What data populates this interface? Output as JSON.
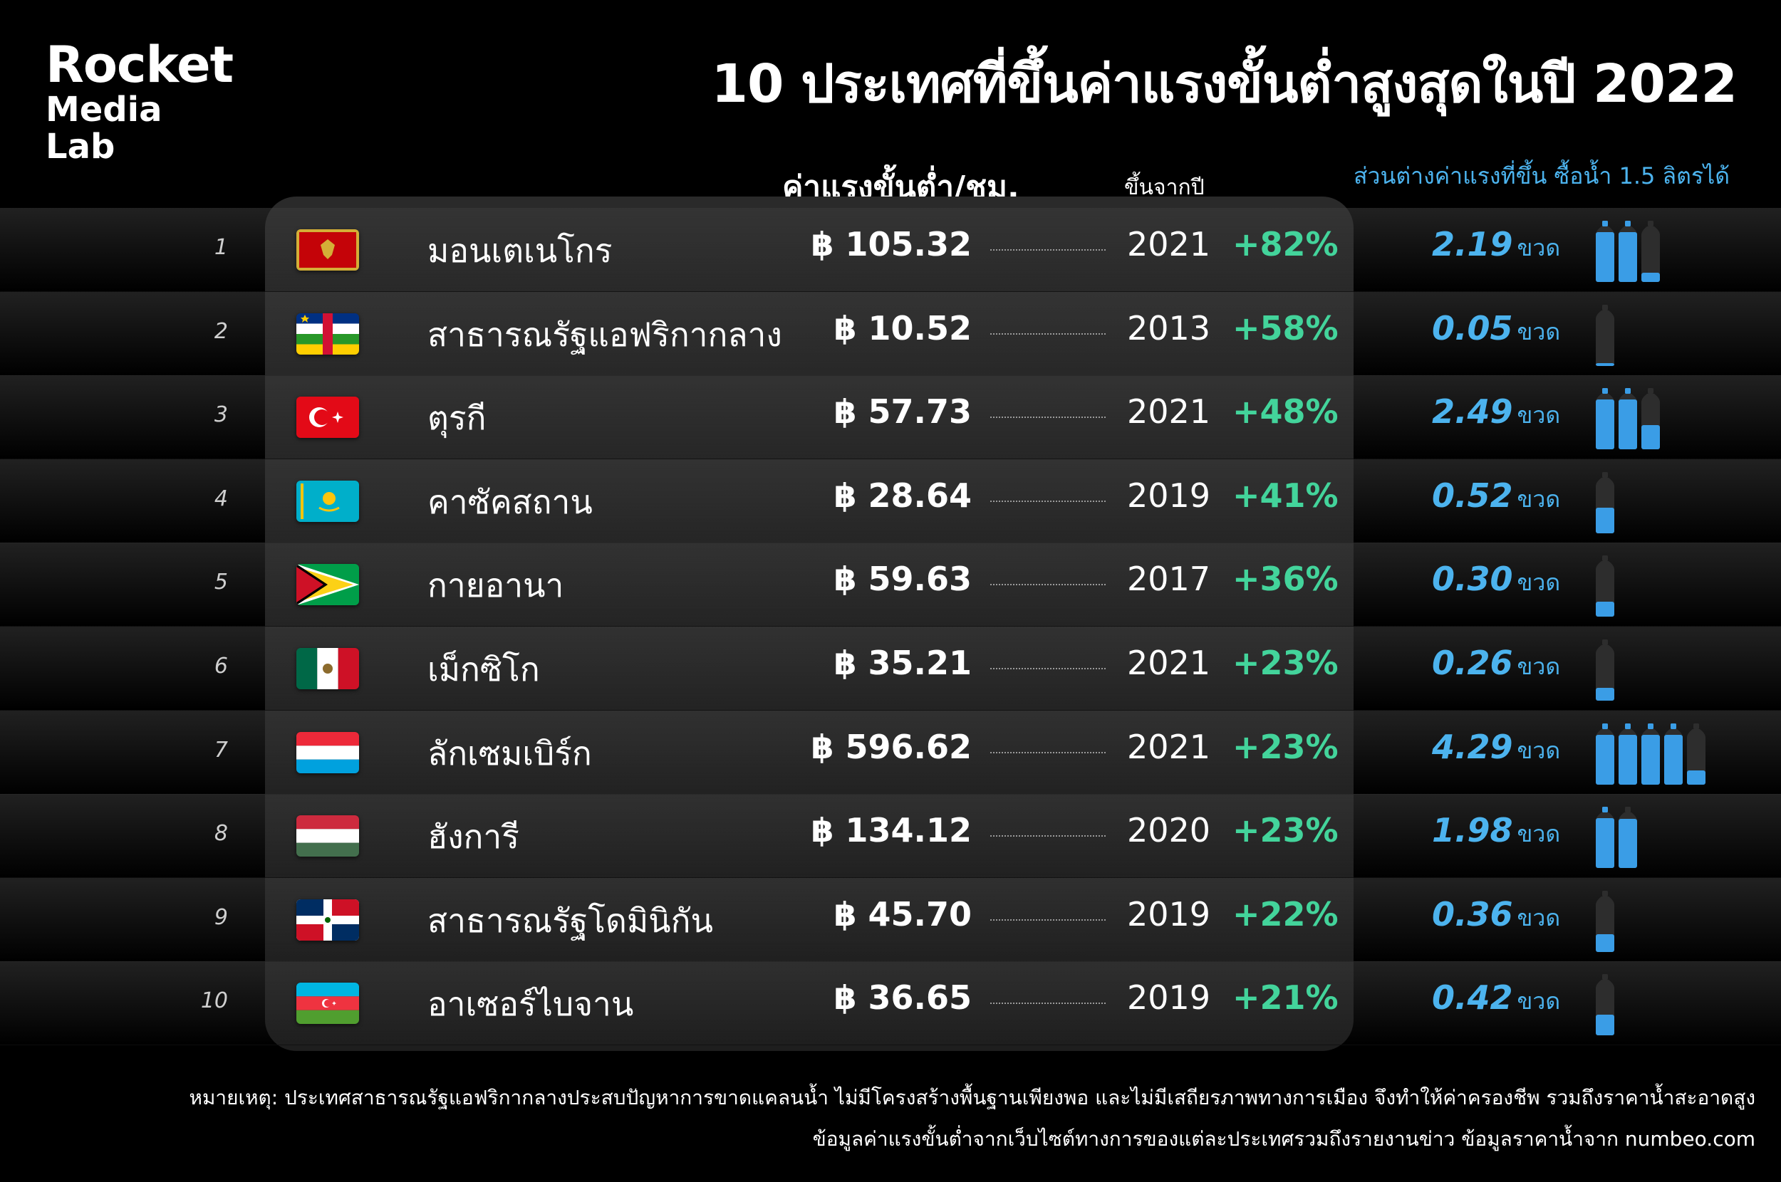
{
  "logo": {
    "line1": "Rocket",
    "line2": "Media",
    "line3": "Lab"
  },
  "title": "10 ประเทศที่ขึ้นค่าแรงขั้นต่ำสูงสุดในปี 2022",
  "headers": {
    "wage": "ค่าแรงขั้นต่ำ/ชม.",
    "year": "ขึ้นจากปี",
    "diff": "ส่วนต่างค่าแรงที่ขึ้น ซื้อน้ำ 1.5 ลิตรได้"
  },
  "bottle_unit": "ขวด",
  "colors": {
    "accent_green": "#43d49b",
    "accent_blue": "#4cb3ee",
    "bottle_full": "#3a9de6",
    "bottle_empty": "#2d2d2d"
  },
  "rows": [
    {
      "rank": "1",
      "flag": "montenegro-flag",
      "country": "มอนเตเนโกร",
      "wage": "฿ 105.32",
      "year": "2021",
      "pct": "+82%",
      "bottles": "2.19",
      "bottle_value": 2.19,
      "bottle_slots": 3
    },
    {
      "rank": "2",
      "flag": "central-african-republic-flag",
      "country": "สาธารณรัฐแอฟริกากลาง",
      "wage": "฿ 10.52",
      "year": "2013",
      "pct": "+58%",
      "bottles": "0.05",
      "bottle_value": 0.05,
      "bottle_slots": 1
    },
    {
      "rank": "3",
      "flag": "turkey-flag",
      "country": "ตุรกี",
      "wage": "฿ 57.73",
      "year": "2021",
      "pct": "+48%",
      "bottles": "2.49",
      "bottle_value": 2.49,
      "bottle_slots": 3
    },
    {
      "rank": "4",
      "flag": "kazakhstan-flag",
      "country": "คาซัคสถาน",
      "wage": "฿ 28.64",
      "year": "2019",
      "pct": "+41%",
      "bottles": "0.52",
      "bottle_value": 0.52,
      "bottle_slots": 1
    },
    {
      "rank": "5",
      "flag": "guyana-flag",
      "country": "กายอานา",
      "wage": "฿ 59.63",
      "year": "2017",
      "pct": "+36%",
      "bottles": "0.30",
      "bottle_value": 0.3,
      "bottle_slots": 1
    },
    {
      "rank": "6",
      "flag": "mexico-flag",
      "country": "เม็กซิโก",
      "wage": "฿ 35.21",
      "year": "2021",
      "pct": "+23%",
      "bottles": "0.26",
      "bottle_value": 0.26,
      "bottle_slots": 1
    },
    {
      "rank": "7",
      "flag": "luxembourg-flag",
      "country": "ลักเซมเบิร์ก",
      "wage": "฿ 596.62",
      "year": "2021",
      "pct": "+23%",
      "bottles": "4.29",
      "bottle_value": 4.29,
      "bottle_slots": 5
    },
    {
      "rank": "8",
      "flag": "hungary-flag",
      "country": "ฮังการี",
      "wage": "฿ 134.12",
      "year": "2020",
      "pct": "+23%",
      "bottles": "1.98",
      "bottle_value": 1.98,
      "bottle_slots": 2
    },
    {
      "rank": "9",
      "flag": "dominican-republic-flag",
      "country": "สาธารณรัฐโดมินิกัน",
      "wage": "฿ 45.70",
      "year": "2019",
      "pct": "+22%",
      "bottles": "0.36",
      "bottle_value": 0.36,
      "bottle_slots": 1
    },
    {
      "rank": "10",
      "flag": "azerbaijan-flag",
      "country": "อาเซอร์ไบจาน",
      "wage": "฿ 36.65",
      "year": "2019",
      "pct": "+21%",
      "bottles": "0.42",
      "bottle_value": 0.42,
      "bottle_slots": 1
    }
  ],
  "note": "หมายเหตุ: ประเทศสาธารณรัฐแอฟริกากลางประสบปัญหาการขาดแคลนน้ำ ไม่มีโครงสร้างพื้นฐานเพียงพอ  และไม่มีเสถียรภาพทางการเมือง จึงทำให้ค่าครองชีพ รวมถึงราคาน้ำสะอาดสูง",
  "source": "ข้อมูลค่าแรงขั้นต่ำจากเว็บไซต์ทางการของแต่ละประเทศรวมถึงรายงานข่าว  ข้อมูลราคาน้ำจาก numbeo.com"
}
